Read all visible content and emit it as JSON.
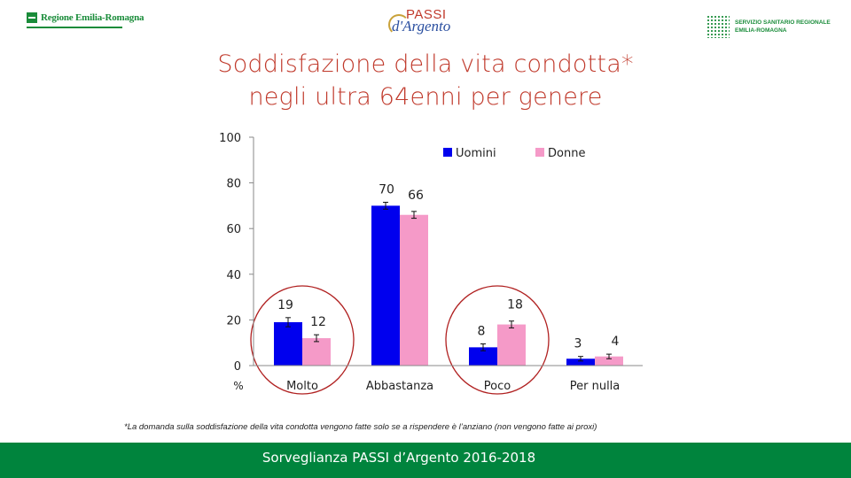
{
  "header": {
    "left_logo": "Regione Emilia-Romagna",
    "center_logo_top": "PASSI",
    "center_logo_bottom": "d'Argento",
    "right_logo_line1": "SERVIZIO SANITARIO REGIONALE",
    "right_logo_line2": "EMILIA-ROMAGNA"
  },
  "title_line1": "Soddisfazione della vita condotta*",
  "title_line2": "negli ultra 64enni per genere",
  "note": "*La domanda sulla soddisfazione della vita condotta vengono fatte solo se a rispendere è l’anziano (non vengono fatte ai proxi)",
  "footer": "Sorveglianza PASSI d’Argento 2016-2018",
  "colors": {
    "uomini": "#0000ee",
    "donne": "#f59ac8",
    "circle": "#b02020",
    "title": "#c0392b",
    "footer": "#00843d"
  },
  "chart_data": {
    "type": "bar",
    "categories": [
      "Molto",
      "Abbastanza",
      "Poco",
      "Per nulla"
    ],
    "series": [
      {
        "name": "Uomini",
        "values": [
          19,
          70,
          8,
          3
        ],
        "error": [
          2,
          1.5,
          1.5,
          1
        ]
      },
      {
        "name": "Donne",
        "values": [
          12,
          66,
          18,
          4
        ],
        "error": [
          1.5,
          1.5,
          1.5,
          1
        ]
      }
    ],
    "value_labels": [
      [
        "19",
        "70",
        "8",
        "3"
      ],
      [
        "12",
        "66",
        "18",
        "4"
      ]
    ],
    "ylim": [
      0,
      100
    ],
    "yticks": [
      "0",
      "20",
      "40",
      "60",
      "80",
      "100"
    ],
    "ylabel": "%",
    "legend_position": "top-right",
    "highlighted_categories": [
      "Molto",
      "Poco"
    ]
  }
}
